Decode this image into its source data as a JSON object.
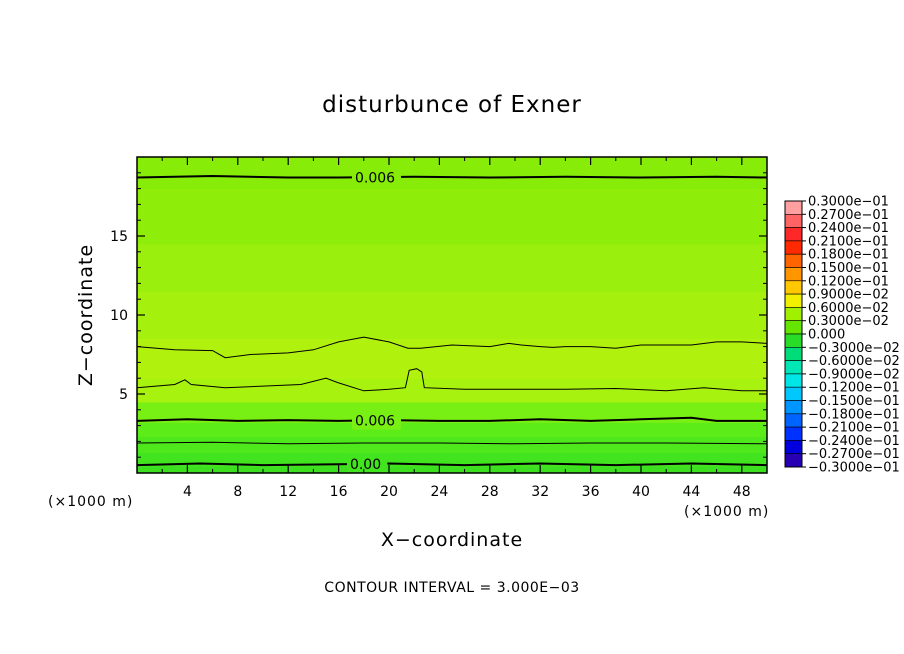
{
  "chart_data": {
    "type": "heatmap",
    "title": "disturbunce of Exner",
    "xlabel": "X−coordinate",
    "ylabel": "Z−coordinate",
    "x_unit_left": "(×1000 m)",
    "x_unit_right": "(×1000 m)",
    "xlim": [
      0,
      50
    ],
    "ylim": [
      0,
      20
    ],
    "x_ticks": [
      4,
      8,
      12,
      16,
      20,
      24,
      28,
      32,
      36,
      40,
      44,
      48
    ],
    "x_tick_labels": [
      "4",
      "8",
      "12",
      "16",
      "20",
      "24",
      "28",
      "32",
      "36",
      "40",
      "44",
      "48"
    ],
    "y_ticks": [
      5,
      10,
      15
    ],
    "y_tick_labels": [
      "5",
      "10",
      "15"
    ],
    "footer": "CONTOUR INTERVAL = 3.000E−03",
    "contour_interval": 0.003,
    "colorbar": {
      "levels": [
        0.03,
        0.027,
        0.024,
        0.021,
        0.018,
        0.015,
        0.012,
        0.009,
        0.006,
        0.003,
        0.0,
        -0.003,
        -0.006,
        -0.009,
        -0.012,
        -0.015,
        -0.018,
        -0.021,
        -0.024,
        -0.027,
        -0.03
      ],
      "labels": [
        "0.3000e−01",
        "0.2700e−01",
        "0.2400e−01",
        "0.2100e−01",
        "0.1800e−01",
        "0.1500e−01",
        "0.1200e−01",
        "0.9000e−02",
        "0.6000e−02",
        "0.3000e−02",
        "0.000",
        "−0.3000e−02",
        "−0.6000e−02",
        "−0.9000e−02",
        "−0.1200e−01",
        "−0.1500e−01",
        "−0.1800e−01",
        "−0.2100e−01",
        "−0.2400e−01",
        "−0.2700e−01",
        "−0.3000e−01"
      ],
      "colors": [
        "#ffa0a0",
        "#ff6464",
        "#ff2828",
        "#ff2a00",
        "#ff6400",
        "#ff9600",
        "#ffc800",
        "#f0f000",
        "#a0f000",
        "#64e600",
        "#28dc28",
        "#00dc78",
        "#00e6b4",
        "#00e6e6",
        "#00c8ff",
        "#0096ff",
        "#0064ff",
        "#0032ff",
        "#0000dc",
        "#2800b4",
        "#6400a0"
      ]
    },
    "field_bands": [
      {
        "z": [
          0.0,
          0.4
        ],
        "color": "#3ce01e"
      },
      {
        "z": [
          0.4,
          1.3
        ],
        "color": "#42e31f"
      },
      {
        "z": [
          1.3,
          2.3
        ],
        "color": "#4fe81c"
      },
      {
        "z": [
          2.3,
          3.2
        ],
        "color": "#5ced19"
      },
      {
        "z": [
          3.2,
          4.5
        ],
        "color": "#78f014"
      },
      {
        "z": [
          4.5,
          6.0
        ],
        "color": "#a8f210"
      },
      {
        "z": [
          6.0,
          8.5
        ],
        "color": "#b0f20e"
      },
      {
        "z": [
          8.5,
          11.5
        ],
        "color": "#a6f00e"
      },
      {
        "z": [
          11.5,
          14.5
        ],
        "color": "#9aef0c"
      },
      {
        "z": [
          14.5,
          18.0
        ],
        "color": "#8eee0a"
      },
      {
        "z": [
          18.0,
          20.0
        ],
        "color": "#86ec08"
      }
    ],
    "contours": [
      {
        "value": 0.006,
        "label": "0.006",
        "label_x": 17.3,
        "width": 2,
        "points": [
          [
            0,
            18.7
          ],
          [
            6,
            18.8
          ],
          [
            12,
            18.7
          ],
          [
            16,
            18.7
          ],
          [
            22,
            18.75
          ],
          [
            28,
            18.7
          ],
          [
            34,
            18.75
          ],
          [
            40,
            18.7
          ],
          [
            46,
            18.75
          ],
          [
            50,
            18.7
          ]
        ]
      },
      {
        "value": 0.009,
        "label": "",
        "width": 1,
        "points": [
          [
            0,
            8.0
          ],
          [
            3,
            7.8
          ],
          [
            6,
            7.75
          ],
          [
            7,
            7.3
          ],
          [
            9,
            7.5
          ],
          [
            12,
            7.6
          ],
          [
            14,
            7.8
          ],
          [
            16,
            8.3
          ],
          [
            18,
            8.6
          ],
          [
            20,
            8.3
          ],
          [
            21.5,
            7.9
          ],
          [
            22.5,
            7.9
          ],
          [
            25,
            8.1
          ],
          [
            28,
            8.0
          ],
          [
            29.5,
            8.2
          ],
          [
            30.5,
            8.1
          ],
          [
            32,
            8.0
          ],
          [
            33,
            7.95
          ],
          [
            34,
            8.0
          ],
          [
            36,
            8.0
          ],
          [
            38,
            7.9
          ],
          [
            40,
            8.1
          ],
          [
            44,
            8.1
          ],
          [
            46,
            8.3
          ],
          [
            48,
            8.3
          ],
          [
            50,
            8.2
          ]
        ]
      },
      {
        "value": 0.009,
        "label": "",
        "width": 1,
        "points": [
          [
            0,
            5.4
          ],
          [
            3,
            5.6
          ],
          [
            3.8,
            5.9
          ],
          [
            4.3,
            5.6
          ],
          [
            7,
            5.4
          ],
          [
            10,
            5.5
          ],
          [
            13,
            5.6
          ],
          [
            15,
            6.0
          ],
          [
            16,
            5.7
          ],
          [
            18,
            5.2
          ],
          [
            20,
            5.3
          ],
          [
            21.3,
            5.4
          ],
          [
            21.6,
            6.5
          ],
          [
            22.2,
            6.6
          ],
          [
            22.6,
            6.4
          ],
          [
            22.8,
            5.4
          ],
          [
            26,
            5.3
          ],
          [
            30,
            5.3
          ],
          [
            34,
            5.3
          ],
          [
            38,
            5.35
          ],
          [
            42,
            5.2
          ],
          [
            45,
            5.4
          ],
          [
            48,
            5.2
          ],
          [
            50,
            5.2
          ]
        ]
      },
      {
        "value": 0.006,
        "label": "0.006",
        "label_x": 17.3,
        "width": 2,
        "points": [
          [
            0,
            3.3
          ],
          [
            4,
            3.4
          ],
          [
            8,
            3.3
          ],
          [
            12,
            3.35
          ],
          [
            16,
            3.3
          ],
          [
            20,
            3.35
          ],
          [
            24,
            3.3
          ],
          [
            28,
            3.3
          ],
          [
            32,
            3.4
          ],
          [
            36,
            3.3
          ],
          [
            40,
            3.4
          ],
          [
            44,
            3.5
          ],
          [
            46,
            3.3
          ],
          [
            50,
            3.3
          ]
        ]
      },
      {
        "value": 0.003,
        "label": "",
        "width": 1,
        "points": [
          [
            0,
            1.9
          ],
          [
            6,
            1.95
          ],
          [
            12,
            1.85
          ],
          [
            18,
            1.9
          ],
          [
            24,
            1.9
          ],
          [
            30,
            1.85
          ],
          [
            36,
            1.9
          ],
          [
            42,
            1.9
          ],
          [
            50,
            1.85
          ]
        ]
      },
      {
        "value": 0.0,
        "label": "0.00",
        "label_x": 16.9,
        "width": 2,
        "points": [
          [
            0,
            0.5
          ],
          [
            5,
            0.6
          ],
          [
            10,
            0.5
          ],
          [
            16,
            0.55
          ],
          [
            20,
            0.6
          ],
          [
            26,
            0.5
          ],
          [
            32,
            0.6
          ],
          [
            38,
            0.5
          ],
          [
            44,
            0.6
          ],
          [
            50,
            0.5
          ]
        ]
      }
    ]
  }
}
